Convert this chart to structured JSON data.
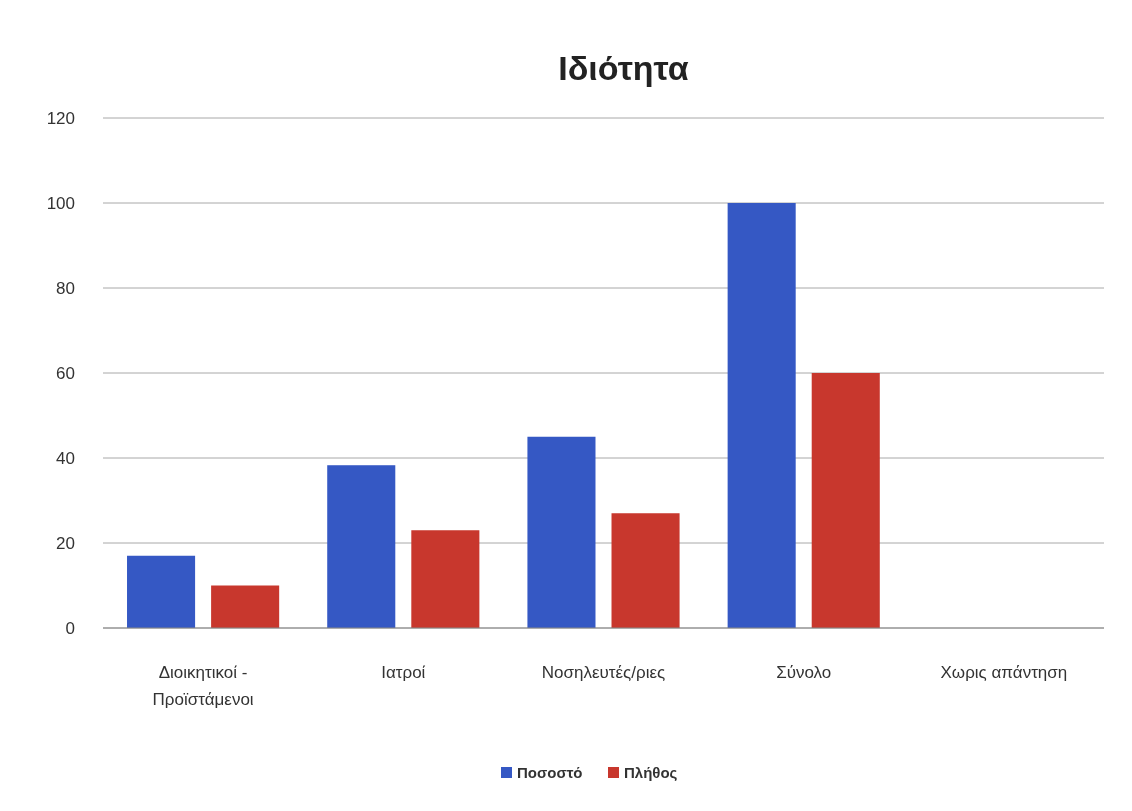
{
  "chart_data": {
    "type": "bar",
    "title": "Ιδιότητα",
    "categories": [
      "Διοικητικοί - Προϊστάμενοι",
      "Ιατροί",
      "Νοσηλευτές/ριες",
      "Σύνολο",
      "Χωρις απάντηση"
    ],
    "series": [
      {
        "name": "Ποσοστό",
        "color": "#3558c4",
        "values": [
          17,
          38.3,
          45,
          100,
          0
        ]
      },
      {
        "name": "Πλήθος",
        "color": "#c8372d",
        "values": [
          10,
          23,
          27,
          60,
          0
        ]
      }
    ],
    "ylim": [
      0,
      120
    ],
    "yticks": [
      0,
      20,
      40,
      60,
      80,
      100,
      120
    ],
    "grid": "y",
    "legend": "bottom"
  }
}
